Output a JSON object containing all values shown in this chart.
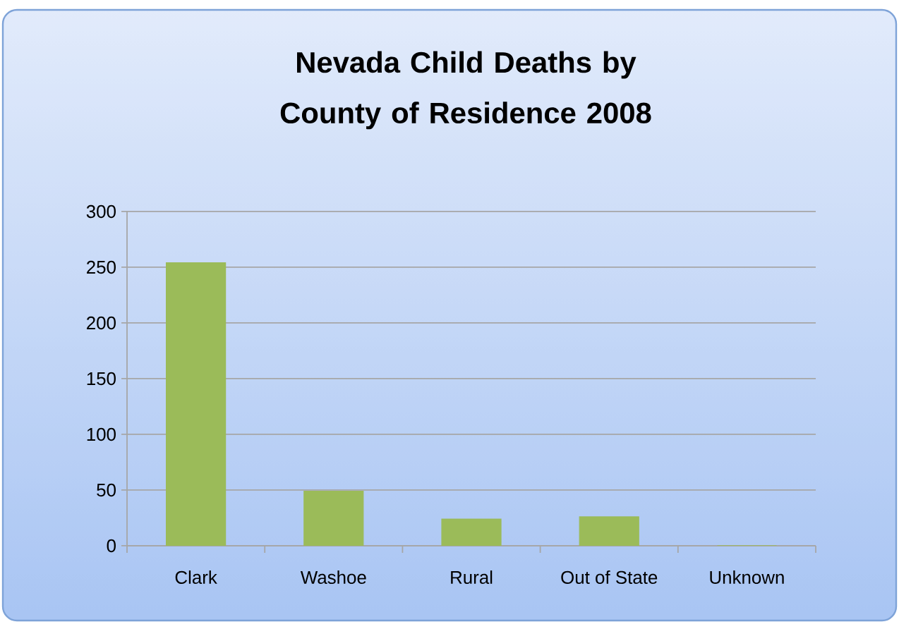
{
  "chart_data": {
    "type": "bar",
    "title": "Nevada Child Deaths by County of Residence 2008",
    "categories": [
      "Clark",
      "Washoe",
      "Rural",
      "Out of State",
      "Unknown"
    ],
    "values": [
      254,
      49,
      24,
      26,
      0
    ],
    "color": "#9bbb59",
    "ylim": [
      0,
      300
    ],
    "yticks": [
      0,
      50,
      100,
      150,
      200,
      250,
      300
    ],
    "grid": "y"
  }
}
